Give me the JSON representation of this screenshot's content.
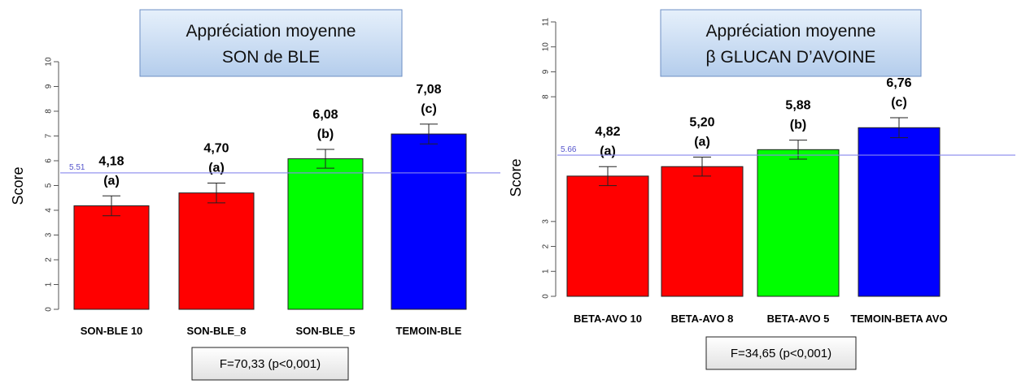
{
  "chart_data": [
    {
      "type": "bar",
      "title": [
        "Appréciation moyenne",
        "SON de BLE"
      ],
      "ylabel": "Score",
      "ylim": [
        0,
        10
      ],
      "yticks": [
        0,
        1,
        2,
        3,
        4,
        5,
        6,
        7,
        8,
        9,
        10
      ],
      "categories": [
        "SON-BLE  10",
        "SON-BLE_8",
        "SON-BLE_5",
        "TEMOIN-BLE"
      ],
      "values": [
        4.18,
        4.7,
        6.08,
        7.08
      ],
      "value_labels": [
        "4,18",
        "4,70",
        "6,08",
        "7,08"
      ],
      "group_labels": [
        "(a)",
        "(a)",
        "(b)",
        "(c)"
      ],
      "errors": [
        0.4,
        0.4,
        0.38,
        0.4
      ],
      "colors": [
        "#ff0000",
        "#ff0000",
        "#00ff00",
        "#0000ff"
      ],
      "reference_line": {
        "value": 5.51,
        "label": "5.51",
        "color": "#8888ee"
      },
      "annotation": "F=70,33 (p<0,001)"
    },
    {
      "type": "bar",
      "title": [
        "Appréciation moyenne",
        "β GLUCAN D’AVOINE"
      ],
      "ylabel": "Score",
      "ylim": [
        0,
        11
      ],
      "yticks": [
        0,
        1,
        2,
        3,
        8,
        9,
        10,
        11
      ],
      "categories": [
        "BETA-AVO  10",
        "BETA-AVO 8",
        "BETA-AVO 5",
        "TEMOIN-BETA AVO"
      ],
      "values": [
        4.82,
        5.2,
        5.88,
        6.76
      ],
      "value_labels": [
        "4,82",
        "5,20",
        "5,88",
        "6,76"
      ],
      "group_labels": [
        "(a)",
        "(a)",
        "(b)",
        "(c)"
      ],
      "errors": [
        0.38,
        0.38,
        0.38,
        0.4
      ],
      "colors": [
        "#ff0000",
        "#ff0000",
        "#00ff00",
        "#0000ff"
      ],
      "reference_line": {
        "value": 5.66,
        "label": "5.66",
        "color": "#8888ee"
      },
      "annotation": "F=34,65 (p<0,001)"
    }
  ]
}
